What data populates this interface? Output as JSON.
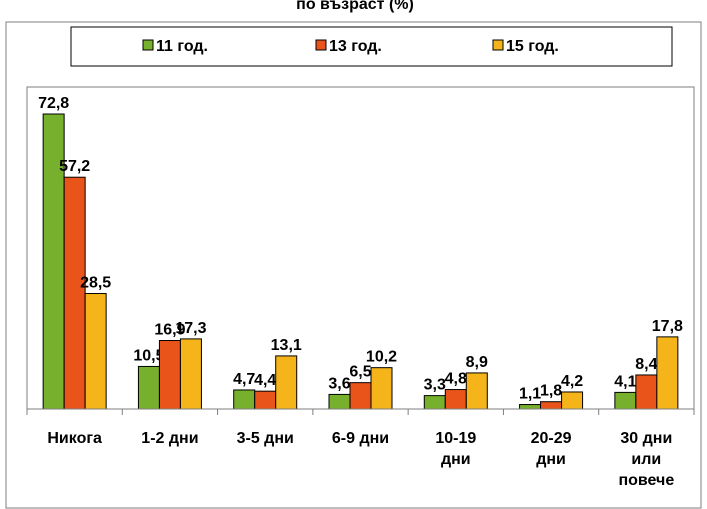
{
  "chart_data": {
    "type": "bar",
    "title": "по възраст (%)",
    "xlabel": "",
    "ylabel": "",
    "ylim": [
      0,
      75
    ],
    "grid": false,
    "legend_position": "top",
    "categories": [
      [
        "Никога"
      ],
      [
        "1-2 дни"
      ],
      [
        "3-5 дни"
      ],
      [
        "6-9 дни"
      ],
      [
        "10-19",
        "дни"
      ],
      [
        "20-29",
        "дни"
      ],
      [
        "30 дни",
        "или",
        "повече"
      ]
    ],
    "series": [
      {
        "name": "11 год.",
        "color": "#77b02c",
        "values": [
          72.8,
          10.5,
          4.7,
          3.6,
          3.3,
          1.1,
          4.1
        ],
        "labels": [
          "72,8",
          "10,5",
          "4,7",
          "3,6",
          "3,3",
          "1,1",
          "4,1"
        ]
      },
      {
        "name": "13 год.",
        "color": "#e9541b",
        "values": [
          57.2,
          16.9,
          4.4,
          6.5,
          4.8,
          1.8,
          8.4
        ],
        "labels": [
          "57,2",
          "16,9",
          "4,4",
          "6,5",
          "4,8",
          "1,8",
          "8,4"
        ]
      },
      {
        "name": "15 год.",
        "color": "#f4b41a",
        "values": [
          28.5,
          17.3,
          13.1,
          10.2,
          8.9,
          4.2,
          17.8
        ],
        "labels": [
          "28,5",
          "17,3",
          "13,1",
          "10,2",
          "8,9",
          "4,2",
          "17,8"
        ]
      }
    ]
  }
}
